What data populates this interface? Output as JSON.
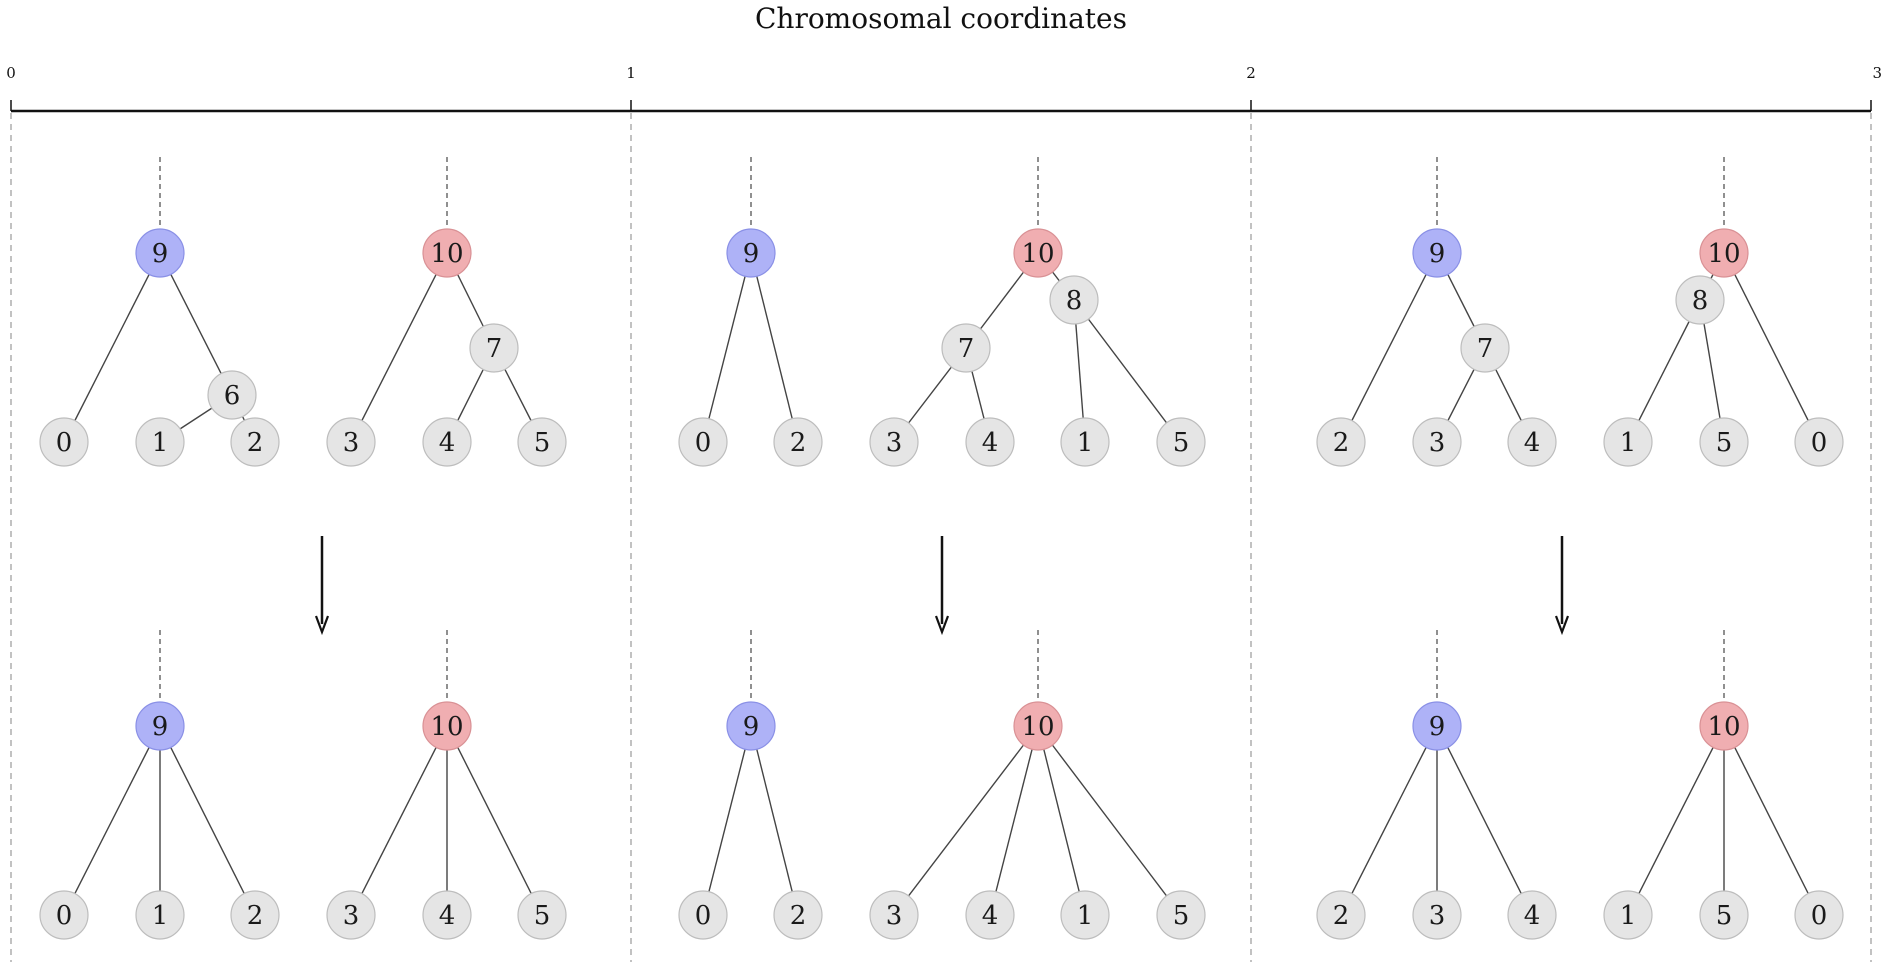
{
  "title": "Chromosomal coordinates",
  "axis": {
    "ticks": [
      "0",
      "1",
      "2",
      "3"
    ]
  },
  "colors": {
    "blue_root": "#aeb2f7",
    "blue_root_stroke": "#8a90e6",
    "red_root": "#f0aeb1",
    "red_root_stroke": "#d99195",
    "leaf": "#e5e5e5",
    "leaf_stroke": "#bdbdbd",
    "edge": "#444444"
  },
  "panels": [
    {
      "interval": [
        "0",
        "1"
      ],
      "before": {
        "trees": [
          {
            "root": "9",
            "color": "blue",
            "internal": [
              "6"
            ],
            "leaves": [
              "0",
              "1",
              "2"
            ]
          },
          {
            "root": "10",
            "color": "red",
            "internal": [
              "7"
            ],
            "leaves": [
              "3",
              "4",
              "5"
            ]
          }
        ]
      },
      "after": {
        "trees": [
          {
            "root": "9",
            "color": "blue",
            "leaves": [
              "0",
              "1",
              "2"
            ]
          },
          {
            "root": "10",
            "color": "red",
            "leaves": [
              "3",
              "4",
              "5"
            ]
          }
        ]
      }
    },
    {
      "interval": [
        "1",
        "2"
      ],
      "before": {
        "trees": [
          {
            "root": "9",
            "color": "blue",
            "leaves": [
              "0",
              "2"
            ]
          },
          {
            "root": "10",
            "color": "red",
            "internal": [
              "7",
              "8"
            ],
            "leaves": [
              "3",
              "4",
              "1",
              "5"
            ]
          }
        ]
      },
      "after": {
        "trees": [
          {
            "root": "9",
            "color": "blue",
            "leaves": [
              "0",
              "2"
            ]
          },
          {
            "root": "10",
            "color": "red",
            "leaves": [
              "3",
              "4",
              "1",
              "5"
            ]
          }
        ]
      }
    },
    {
      "interval": [
        "2",
        "3"
      ],
      "before": {
        "trees": [
          {
            "root": "9",
            "color": "blue",
            "internal": [
              "7"
            ],
            "leaves": [
              "2",
              "3",
              "4"
            ]
          },
          {
            "root": "10",
            "color": "red",
            "internal": [
              "8"
            ],
            "leaves": [
              "1",
              "5",
              "0"
            ]
          }
        ]
      },
      "after": {
        "trees": [
          {
            "root": "9",
            "color": "blue",
            "leaves": [
              "2",
              "3",
              "4"
            ]
          },
          {
            "root": "10",
            "color": "red",
            "leaves": [
              "1",
              "5",
              "0"
            ]
          }
        ]
      }
    }
  ]
}
